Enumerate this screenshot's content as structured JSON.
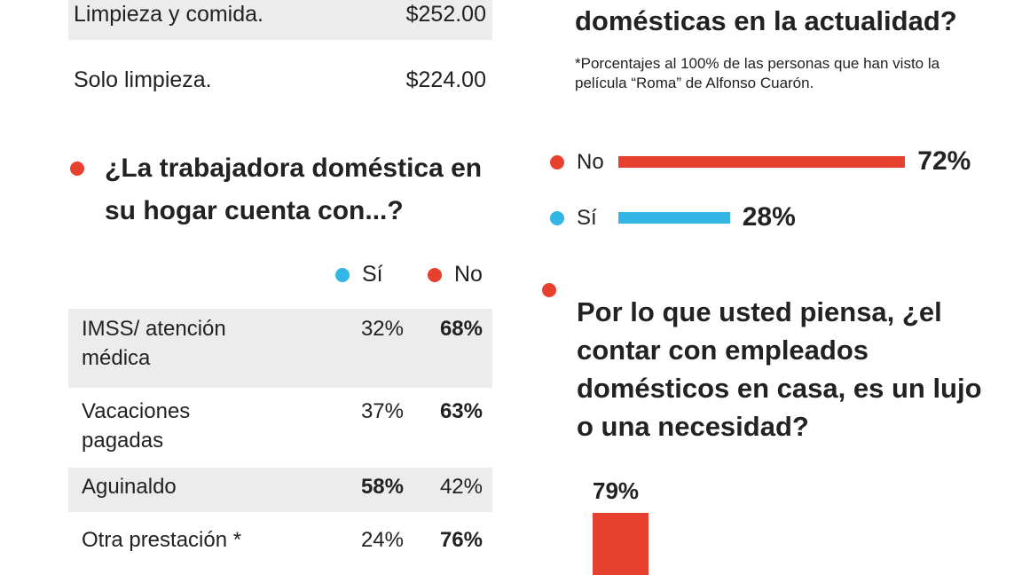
{
  "prices": {
    "rows": [
      [
        "Limpieza y comida.",
        "$252.00"
      ],
      [
        "Solo limpieza.",
        "$224.00"
      ]
    ]
  },
  "benefits": {
    "title": "¿La trabajadora doméstica en su hogar cuenta con...?",
    "legend": [
      "Sí",
      "No"
    ],
    "rows": [
      [
        "IMSS/ atención médica",
        "32%",
        "68%"
      ],
      [
        "Vacaciones pagadas",
        "37%",
        "63%"
      ],
      [
        "Aguinaldo",
        "58%",
        "42%"
      ],
      [
        "Otra prestación *",
        "24%",
        "76%"
      ]
    ]
  },
  "chart_data": [
    {
      "type": "hbar",
      "title": "domésticas en la actualidad?",
      "subtitle": "*Porcentajes al 100% de las personas que han visto la película “Roma” de Alfonso Cuarón.",
      "categories": [
        "No",
        "Sí"
      ],
      "values": [
        72,
        28
      ],
      "value_labels": [
        "72%",
        "28%"
      ],
      "colors": [
        "#e8402f",
        "#33b5e5"
      ]
    },
    {
      "type": "bar",
      "title": "Por lo que usted piensa, ¿el contar con empleados domésticos en casa, es un lujo o una necesidad?",
      "categories": [
        null
      ],
      "values": [
        79
      ],
      "value_labels": [
        "79%"
      ],
      "colors": [
        "#e8402f"
      ]
    }
  ]
}
